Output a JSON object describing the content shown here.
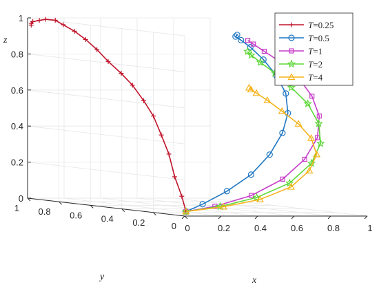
{
  "chart_data": {
    "type": "line",
    "view": "3d",
    "axes": {
      "x": {
        "label": "x",
        "ticks": [
          0,
          0.2,
          0.4,
          0.6,
          0.8,
          1
        ]
      },
      "y": {
        "label": "y",
        "ticks": [
          0,
          0.2,
          0.4,
          0.6,
          0.8,
          1
        ]
      },
      "z": {
        "label": "z",
        "ticks": [
          0,
          0.2,
          0.4,
          0.6,
          0.8,
          1
        ]
      },
      "xlim": [
        0,
        1
      ],
      "ylim": [
        0,
        1
      ],
      "zlim": [
        0,
        1
      ]
    },
    "grid": true,
    "legend_position": "top-right",
    "legend_prefix": "T",
    "series": [
      {
        "name": "=0.25",
        "color": "#c0142b",
        "marker": "plus",
        "points": [
          [
            0.05,
            0.05,
            0.02
          ],
          [
            0.07,
            0.1,
            0.1
          ],
          [
            0.1,
            0.18,
            0.2
          ],
          [
            0.12,
            0.24,
            0.32
          ],
          [
            0.13,
            0.3,
            0.42
          ],
          [
            0.13,
            0.35,
            0.52
          ],
          [
            0.12,
            0.4,
            0.6
          ],
          [
            0.11,
            0.46,
            0.68
          ],
          [
            0.1,
            0.52,
            0.74
          ],
          [
            0.08,
            0.58,
            0.8
          ],
          [
            0.07,
            0.64,
            0.86
          ],
          [
            0.06,
            0.7,
            0.91
          ],
          [
            0.05,
            0.76,
            0.95
          ],
          [
            0.04,
            0.82,
            0.98
          ],
          [
            0.04,
            0.87,
            1.0
          ],
          [
            0.03,
            0.92,
            1.0
          ],
          [
            0.03,
            0.96,
            0.99
          ],
          [
            0.02,
            0.99,
            0.98
          ],
          [
            0.02,
            1.0,
            0.97
          ],
          [
            0.02,
            1.0,
            0.96
          ]
        ]
      },
      {
        "name": "=0.5",
        "color": "#1f77c2",
        "marker": "circle",
        "points": [
          [
            0.05,
            0.05,
            0.02
          ],
          [
            0.15,
            0.06,
            0.06
          ],
          [
            0.3,
            0.08,
            0.13
          ],
          [
            0.45,
            0.1,
            0.22
          ],
          [
            0.56,
            0.11,
            0.33
          ],
          [
            0.63,
            0.11,
            0.45
          ],
          [
            0.66,
            0.11,
            0.56
          ],
          [
            0.64,
            0.1,
            0.67
          ],
          [
            0.58,
            0.09,
            0.77
          ],
          [
            0.5,
            0.08,
            0.86
          ],
          [
            0.42,
            0.07,
            0.93
          ],
          [
            0.36,
            0.06,
            0.97
          ],
          [
            0.33,
            0.06,
            0.99
          ],
          [
            0.33,
            0.05,
            1.0
          ]
        ]
      },
      {
        "name": "=1",
        "color": "#c73cc9",
        "marker": "square",
        "points": [
          [
            0.05,
            0.05,
            0.02
          ],
          [
            0.2,
            0.04,
            0.05
          ],
          [
            0.4,
            0.04,
            0.11
          ],
          [
            0.58,
            0.05,
            0.2
          ],
          [
            0.7,
            0.05,
            0.31
          ],
          [
            0.77,
            0.05,
            0.43
          ],
          [
            0.78,
            0.05,
            0.55
          ],
          [
            0.74,
            0.05,
            0.66
          ],
          [
            0.66,
            0.04,
            0.76
          ],
          [
            0.56,
            0.04,
            0.85
          ],
          [
            0.47,
            0.04,
            0.91
          ],
          [
            0.41,
            0.04,
            0.95
          ],
          [
            0.38,
            0.04,
            0.97
          ]
        ]
      },
      {
        "name": "=2",
        "color": "#5fd83a",
        "marker": "star",
        "points": [
          [
            0.05,
            0.05,
            0.02
          ],
          [
            0.22,
            0.03,
            0.05
          ],
          [
            0.42,
            0.03,
            0.1
          ],
          [
            0.6,
            0.03,
            0.18
          ],
          [
            0.72,
            0.03,
            0.29
          ],
          [
            0.77,
            0.03,
            0.4
          ],
          [
            0.76,
            0.03,
            0.51
          ],
          [
            0.7,
            0.03,
            0.62
          ],
          [
            0.61,
            0.03,
            0.71
          ],
          [
            0.52,
            0.03,
            0.79
          ],
          [
            0.44,
            0.03,
            0.85
          ],
          [
            0.39,
            0.03,
            0.89
          ],
          [
            0.37,
            0.03,
            0.91
          ]
        ]
      },
      {
        "name": "=4",
        "color": "#f5b31c",
        "marker": "triangle",
        "points": [
          [
            0.05,
            0.05,
            0.02
          ],
          [
            0.23,
            0.02,
            0.05
          ],
          [
            0.43,
            0.02,
            0.09
          ],
          [
            0.6,
            0.02,
            0.16
          ],
          [
            0.7,
            0.02,
            0.25
          ],
          [
            0.74,
            0.02,
            0.34
          ],
          [
            0.71,
            0.02,
            0.43
          ],
          [
            0.64,
            0.02,
            0.51
          ],
          [
            0.55,
            0.02,
            0.58
          ],
          [
            0.47,
            0.02,
            0.64
          ],
          [
            0.41,
            0.02,
            0.68
          ],
          [
            0.38,
            0.02,
            0.7
          ],
          [
            0.37,
            0.02,
            0.71
          ]
        ]
      }
    ]
  }
}
